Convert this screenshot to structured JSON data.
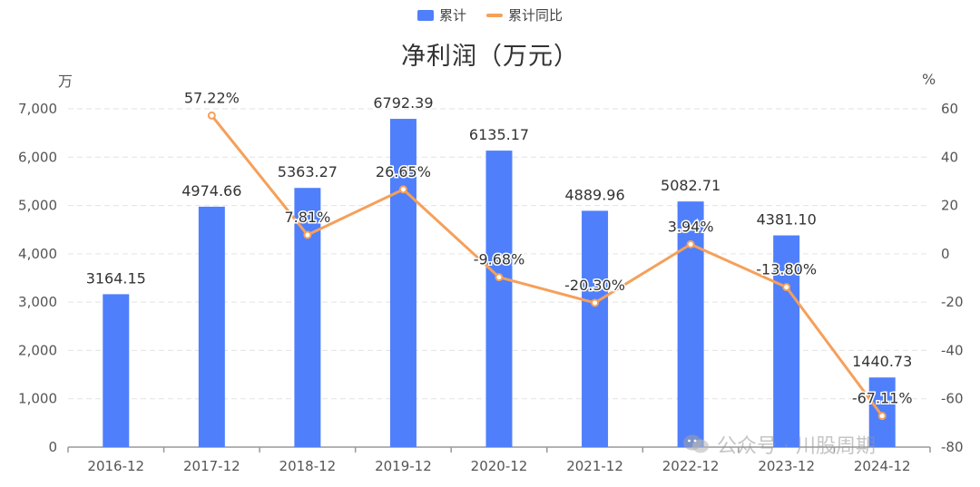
{
  "legend": {
    "bar_label": "累计",
    "line_label": "累计同比"
  },
  "colors": {
    "bar": "#4F7FFB",
    "line": "#F5A05A",
    "axis": "#999999",
    "grid": "#E3E3E3",
    "text": "#555555"
  },
  "unit_left": "万",
  "unit_right": "%",
  "watermark": {
    "icon": "wechat-icon",
    "text": "公众号 · 川股周期"
  },
  "chart_data": {
    "type": "bar",
    "title": "净利润（万元）",
    "categories": [
      "2016-12",
      "2017-12",
      "2018-12",
      "2019-12",
      "2020-12",
      "2021-12",
      "2022-12",
      "2023-12",
      "2024-12"
    ],
    "series": [
      {
        "name": "累计",
        "type": "bar",
        "axis": "left",
        "values": [
          3164.15,
          4974.66,
          5363.27,
          6792.39,
          6135.17,
          4889.96,
          5082.71,
          4381.1,
          1440.73
        ],
        "labels": [
          "3164.15",
          "4974.66",
          "5363.27",
          "6792.39",
          "6135.17",
          "4889.96",
          "5082.71",
          "4381.10",
          "1440.73"
        ]
      },
      {
        "name": "累计同比",
        "type": "line",
        "axis": "right",
        "values": [
          null,
          57.22,
          7.81,
          26.65,
          -9.68,
          -20.3,
          3.94,
          -13.8,
          -67.11
        ],
        "labels": [
          "",
          "57.22%",
          "7.81%",
          "26.65%",
          "-9.68%",
          "-20.30%",
          "3.94%",
          "-13.80%",
          "-67.11%"
        ]
      }
    ],
    "y_left": {
      "range": [
        0,
        7000
      ],
      "ticks": [
        0,
        1000,
        2000,
        3000,
        4000,
        5000,
        6000,
        7000
      ],
      "tick_labels": [
        "0",
        "1,000",
        "2,000",
        "3,000",
        "4,000",
        "5,000",
        "6,000",
        "7,000"
      ]
    },
    "y_right": {
      "range": [
        -80,
        60
      ],
      "ticks": [
        -80,
        -60,
        -40,
        -20,
        0,
        20,
        40,
        60
      ],
      "tick_labels": [
        "-80",
        "-60",
        "-40",
        "-20",
        "0",
        "20",
        "40",
        "60"
      ]
    },
    "grid": true,
    "legend_position": "top-center"
  }
}
